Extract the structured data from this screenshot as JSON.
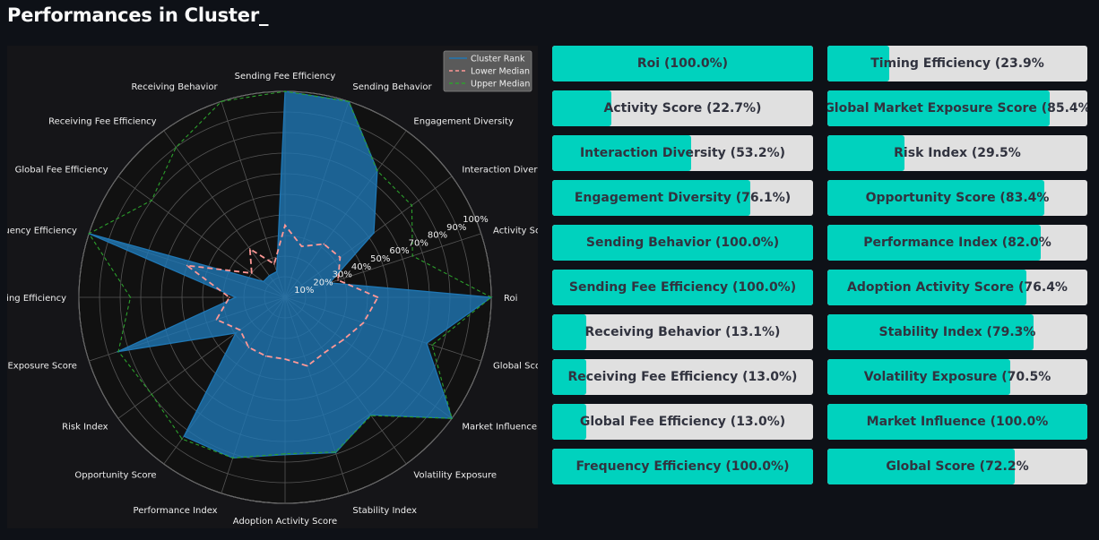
{
  "page": {
    "title": "Performances in Cluster_"
  },
  "chart_data": {
    "type": "radar",
    "title": "",
    "categories": [
      "Roi",
      "Activity Score",
      "Interaction Diversity",
      "Engagement Diversity",
      "Sending Behavior",
      "Sending Fee Efficiency",
      "Receiving Behavior",
      "Receiving Fee Efficiency",
      "Global Fee Efficiency",
      "Frequency Efficiency",
      "Timing Efficiency",
      "Global Market Exposure Score",
      "Risk Index",
      "Opportunity Score",
      "Performance Index",
      "Adoption Activity Score",
      "Stability Index",
      "Volatility Exposure",
      "Market Influence",
      "Global Score"
    ],
    "radial_ticks": [
      "10%",
      "20%",
      "30%",
      "40%",
      "50%",
      "60%",
      "70%",
      "80%",
      "90%",
      "100%"
    ],
    "legend_position": "top-right",
    "series": [
      {
        "name": "Cluster Rank",
        "color": "#1f77b4",
        "style": "solid",
        "fill": true,
        "values": [
          100.0,
          22.7,
          53.2,
          76.1,
          100.0,
          100.0,
          13.1,
          13.0,
          13.0,
          100.0,
          23.9,
          85.4,
          29.5,
          83.4,
          82.0,
          76.4,
          79.3,
          70.5,
          100.0,
          72.2
        ]
      },
      {
        "name": "Lower Median",
        "color": "#ff9896",
        "style": "dashed",
        "values": [
          45,
          27,
          33,
          32,
          26,
          35,
          17,
          29,
          20,
          50,
          27,
          35,
          27,
          30,
          30,
          30,
          35,
          33,
          35,
          40
        ]
      },
      {
        "name": "Upper Median",
        "color": "#2ca02c",
        "style": "dashed",
        "values": [
          100,
          65,
          76,
          76,
          100,
          100,
          100,
          90,
          80,
          100,
          75,
          85,
          80,
          85,
          82,
          76,
          79,
          71,
          100,
          75
        ]
      }
    ]
  },
  "bars": [
    {
      "label": "Roi (100.0%)",
      "value": 100.0
    },
    {
      "label": "Timing Efficiency (23.9%",
      "value": 23.9
    },
    {
      "label": "Activity Score (22.7%)",
      "value": 22.7
    },
    {
      "label": "Global Market Exposure Score (85.4%",
      "value": 85.4
    },
    {
      "label": "Interaction Diversity (53.2%)",
      "value": 53.2
    },
    {
      "label": "Risk Index (29.5%",
      "value": 29.5
    },
    {
      "label": "Engagement Diversity (76.1%)",
      "value": 76.1
    },
    {
      "label": "Opportunity Score (83.4%",
      "value": 83.4
    },
    {
      "label": "Sending Behavior (100.0%)",
      "value": 100.0
    },
    {
      "label": "Performance Index (82.0%",
      "value": 82.0
    },
    {
      "label": "Sending Fee Efficiency (100.0%)",
      "value": 100.0
    },
    {
      "label": "Adoption Activity Score (76.4%",
      "value": 76.4
    },
    {
      "label": "Receiving Behavior (13.1%)",
      "value": 13.1
    },
    {
      "label": "Stability Index (79.3%",
      "value": 79.3
    },
    {
      "label": "Receiving Fee Efficiency (13.0%)",
      "value": 13.0
    },
    {
      "label": "Volatility Exposure (70.5%",
      "value": 70.5
    },
    {
      "label": "Global Fee Efficiency (13.0%)",
      "value": 13.0
    },
    {
      "label": "Market Influence (100.0%",
      "value": 100.0
    },
    {
      "label": "Frequency Efficiency (100.0%)",
      "value": 100.0
    },
    {
      "label": "Global Score (72.2%",
      "value": 72.2
    }
  ],
  "colors": {
    "bar_fill": "#00d2be",
    "bar_track": "#e0e0e0",
    "bar_text": "#31333f",
    "background": "#0e1117"
  }
}
